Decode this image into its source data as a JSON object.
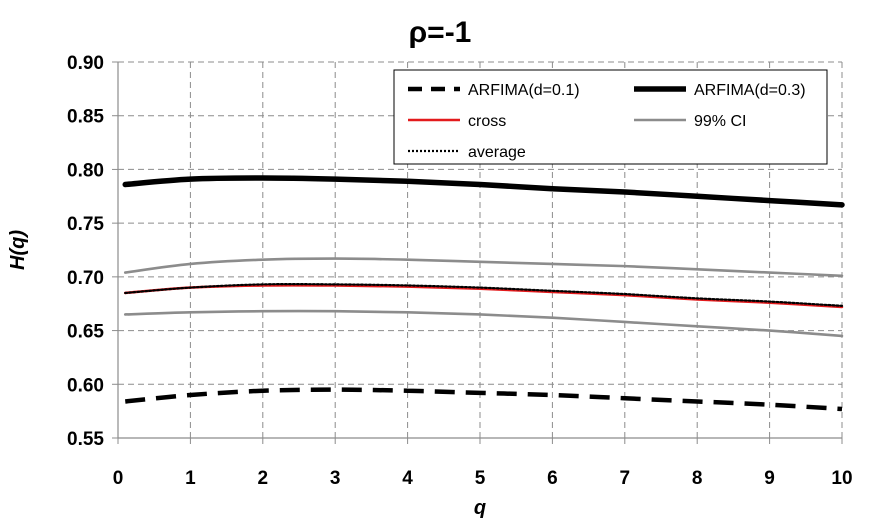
{
  "chart_data": {
    "type": "line",
    "title": "ρ=-1",
    "xlabel": "q",
    "ylabel": "H(q)",
    "xlim": [
      0,
      10
    ],
    "ylim": [
      0.55,
      0.9
    ],
    "x_ticks": [
      "0",
      "1",
      "2",
      "3",
      "4",
      "5",
      "6",
      "7",
      "8",
      "9",
      "10"
    ],
    "y_ticks": [
      "0.55",
      "0.60",
      "0.65",
      "0.70",
      "0.75",
      "0.80",
      "0.85",
      "0.90"
    ],
    "grid": true,
    "legend_position": "top-right",
    "x": [
      0.1,
      1,
      2,
      3,
      4,
      5,
      6,
      7,
      8,
      9,
      10
    ],
    "series": [
      {
        "name": "ARFIMA(d=0.1)",
        "style": "dashed",
        "color": "#000000",
        "values": [
          0.584,
          0.59,
          0.594,
          0.595,
          0.594,
          0.592,
          0.59,
          0.587,
          0.584,
          0.581,
          0.577
        ]
      },
      {
        "name": "ARFIMA(d=0.3)",
        "style": "thick",
        "color": "#000000",
        "values": [
          0.786,
          0.791,
          0.792,
          0.791,
          0.789,
          0.786,
          0.782,
          0.779,
          0.775,
          0.771,
          0.767
        ]
      },
      {
        "name": "cross",
        "style": "solid",
        "color": "#e31a1c",
        "values": [
          0.685,
          0.69,
          0.692,
          0.692,
          0.691,
          0.689,
          0.686,
          0.683,
          0.679,
          0.676,
          0.672
        ]
      },
      {
        "name": "99% CI",
        "style": "solid",
        "color": "#8c8c8c",
        "values": [
          0.704,
          0.712,
          0.716,
          0.717,
          0.716,
          0.714,
          0.712,
          0.71,
          0.707,
          0.704,
          0.701
        ]
      },
      {
        "name": "",
        "style": "solid",
        "color": "#8c8c8c",
        "values": [
          0.665,
          0.667,
          0.668,
          0.668,
          0.667,
          0.665,
          0.662,
          0.658,
          0.654,
          0.65,
          0.645
        ]
      },
      {
        "name": "average",
        "style": "dotted",
        "color": "#000000",
        "values": [
          0.685,
          0.69,
          0.693,
          0.693,
          0.692,
          0.69,
          0.687,
          0.684,
          0.68,
          0.677,
          0.673
        ]
      }
    ],
    "legend": [
      {
        "label": "ARFIMA(d=0.1)",
        "series": 0
      },
      {
        "label": "ARFIMA(d=0.3)",
        "series": 1
      },
      {
        "label": "cross",
        "series": 2
      },
      {
        "label": "99% CI",
        "series": 3
      },
      {
        "label": "average",
        "series": 5
      }
    ]
  }
}
